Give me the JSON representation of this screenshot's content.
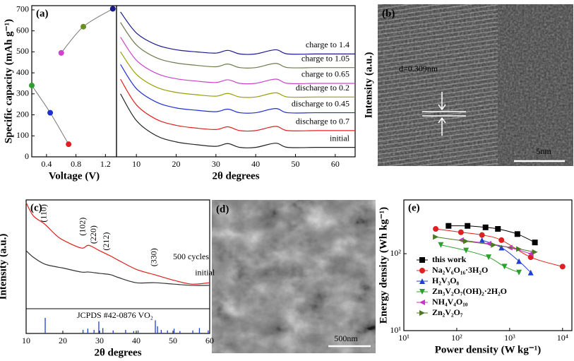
{
  "chart_data": [
    {
      "type": "scatter",
      "panel_label": "(a)",
      "y_label": "Specific capacity (mAh g⁻¹)",
      "x_label": "Voltage (V)",
      "xlim": [
        0.2,
        1.35
      ],
      "xticks": [
        0.4,
        0.8,
        1.2
      ],
      "ylim": [
        0,
        720
      ],
      "yticks": [
        0,
        100,
        200,
        300,
        400,
        500,
        600,
        700
      ],
      "series": [
        {
          "x": [
            0.2,
            0.45,
            0.7
          ],
          "values": [
            340,
            210,
            60
          ],
          "colors": [
            "#2ca02c",
            "#2030d0",
            "#e02020"
          ]
        },
        {
          "x": [
            0.6,
            0.9,
            1.3
          ],
          "values": [
            495,
            620,
            705
          ],
          "colors": [
            "#cc44cc",
            "#6b8e23",
            "#1a1a8c"
          ]
        }
      ]
    },
    {
      "type": "line",
      "x_label": "2θ degrees",
      "xlim": [
        5,
        65
      ],
      "xticks": [
        10,
        20,
        30,
        40,
        50,
        60
      ],
      "ylim": [
        0,
        720
      ],
      "series": [
        {
          "name": "charge to 1.4",
          "color": "#1a1a8c",
          "x": [
            6,
            10,
            15,
            20,
            25,
            30,
            33,
            36,
            40,
            45,
            48,
            55,
            60,
            65
          ],
          "values": [
            690,
            590,
            534,
            510,
            500,
            494,
            507,
            490,
            490,
            510,
            490,
            490,
            490,
            490
          ]
        },
        {
          "name": "charge to 1.05",
          "color": "#6b7d4a",
          "x": [
            6,
            10,
            15,
            20,
            25,
            30,
            33,
            36,
            40,
            45,
            48,
            55,
            60,
            65
          ],
          "values": [
            640,
            533,
            472,
            447,
            436,
            429,
            442,
            425,
            425,
            445,
            425,
            425,
            425,
            425
          ]
        },
        {
          "name": "charge to 0.65",
          "color": "#cc44cc",
          "x": [
            6,
            10,
            15,
            20,
            25,
            30,
            33,
            36,
            40,
            45,
            48,
            55,
            60,
            65
          ],
          "values": [
            570,
            460,
            398,
            372,
            361,
            354,
            367,
            350,
            350,
            370,
            350,
            350,
            350,
            350
          ]
        },
        {
          "name": "discharge to 0.2",
          "color": "#99a000",
          "x": [
            6,
            10,
            15,
            20,
            25,
            30,
            33,
            36,
            40,
            45,
            48,
            55,
            60,
            65
          ],
          "values": [
            500,
            393,
            332,
            307,
            296,
            289,
            302,
            285,
            285,
            305,
            285,
            285,
            285,
            285
          ]
        },
        {
          "name": "discharge to 0.45",
          "color": "#2030d0",
          "x": [
            6,
            10,
            15,
            20,
            25,
            30,
            33,
            36,
            40,
            45,
            48,
            55,
            60,
            65
          ],
          "values": [
            440,
            325,
            261,
            233,
            222,
            215,
            227,
            210,
            210,
            230,
            210,
            210,
            210,
            210
          ]
        },
        {
          "name": "discharge to 0.7",
          "color": "#e02020",
          "x": [
            6,
            10,
            15,
            20,
            25,
            30,
            33,
            36,
            40,
            45,
            48,
            55,
            60,
            65
          ],
          "values": [
            370,
            248,
            179,
            150,
            137,
            130,
            143,
            125,
            125,
            145,
            125,
            125,
            125,
            125
          ]
        },
        {
          "name": "initial",
          "color": "#222222",
          "x": [
            6,
            10,
            15,
            20,
            25,
            30,
            33,
            36,
            40,
            45,
            48,
            55,
            60,
            65
          ],
          "values": [
            300,
            173,
            101,
            71,
            58,
            50,
            63,
            45,
            45,
            65,
            45,
            45,
            45,
            45
          ]
        }
      ]
    },
    {
      "type": "image",
      "panel_label": "(b)",
      "y_label": "Intensity (a.u.)",
      "annotation": "d=0.309nm",
      "scale_bar": "5nm"
    },
    {
      "type": "line",
      "panel_label": "(c)",
      "y_label": "Intensity (a.u.)",
      "x_label": "2θ degrees",
      "xlim": [
        10,
        60
      ],
      "xticks": [
        10,
        20,
        30,
        40,
        50,
        60
      ],
      "ylim": [
        0,
        100
      ],
      "peak_labels": [
        "(110)",
        "(102)",
        "(220)",
        "(212)",
        "(330)"
      ],
      "series": [
        {
          "name": "500 cycles",
          "color": "#e02020",
          "x": [
            10,
            12,
            15,
            18,
            20,
            25,
            27,
            30,
            33,
            35,
            40,
            45,
            50,
            55,
            60
          ],
          "values": [
            98,
            88,
            82,
            74,
            70,
            64,
            66,
            62,
            58,
            55,
            48,
            44,
            40,
            37,
            38
          ]
        },
        {
          "name": "initial",
          "color": "#333333",
          "x": [
            10,
            12,
            15,
            18,
            20,
            25,
            27,
            30,
            33,
            35,
            40,
            45,
            50,
            55,
            60
          ],
          "values": [
            62,
            57,
            52,
            50,
            49,
            46,
            46,
            45,
            44,
            42,
            38,
            38,
            37,
            36,
            36
          ]
        }
      ],
      "reference": {
        "name": "JCPDS #42-0876 VO₂",
        "color": "#2040d0",
        "x": [
          15.2,
          25.5,
          26.8,
          28.5,
          29.8,
          30.9,
          33.7,
          37.1,
          39.3,
          40.5,
          45.2,
          45.8,
          46.8,
          48.5,
          50.3,
          51.9,
          55.4,
          57.2,
          59.6
        ],
        "values": [
          26,
          6,
          8,
          6,
          20,
          9,
          5,
          6,
          4,
          5,
          22,
          12,
          6,
          5,
          8,
          4,
          5,
          9,
          5
        ]
      }
    },
    {
      "type": "image",
      "panel_label": "(d)",
      "scale_bar": "500nm"
    },
    {
      "type": "scatter",
      "panel_label": "(e)",
      "y_label": "Energy density (Wh kg⁻¹)",
      "x_label": "Power density (W kg⁻¹)",
      "xlog": true,
      "ylog": true,
      "xlim": [
        10,
        15000
      ],
      "ylim": [
        10,
        500
      ],
      "xticks": [
        {
          "value": 10,
          "label": "10¹"
        },
        {
          "value": 100,
          "label": "10²"
        },
        {
          "value": 1000,
          "label": "10³"
        },
        {
          "value": 10000,
          "label": "10⁴"
        }
      ],
      "yticks": [
        {
          "value": 10,
          "label": "10¹"
        },
        {
          "value": 100,
          "label": "10²"
        }
      ],
      "series": [
        {
          "name": "this work",
          "color": "#000000",
          "marker": "square",
          "x": [
            70,
            160,
            350,
            600,
            1400,
            3000
          ],
          "values": [
            230,
            230,
            220,
            210,
            180,
            140
          ]
        },
        {
          "name": "Na₂V₆O₁₆·3H₂O",
          "color": "#e02020",
          "marker": "circle",
          "x": [
            40,
            120,
            300,
            700,
            2500,
            10000
          ],
          "values": [
            210,
            190,
            175,
            150,
            90,
            68
          ]
        },
        {
          "name": "H₂V₃O₈",
          "color": "#2040d0",
          "marker": "up",
          "x": [
            300,
            700,
            1500,
            2500
          ],
          "values": [
            150,
            120,
            80,
            57
          ]
        },
        {
          "name": "Zn₃V₂O₇(OH)₂·2H₂O",
          "color": "#2ca02c",
          "marker": "down",
          "x": [
            50,
            150,
            400,
            800,
            1500
          ],
          "values": [
            130,
            110,
            90,
            68,
            57
          ]
        },
        {
          "name": "NH₄V₄O₁₀",
          "color": "#cc33cc",
          "marker": "left",
          "x": [
            120,
            400,
            1000,
            2500
          ],
          "values": [
            150,
            135,
            120,
            100
          ]
        },
        {
          "name": "Zn₂V₂O₇",
          "color": "#4a7a20",
          "marker": "right",
          "x": [
            40,
            150,
            500,
            1500,
            3000
          ],
          "values": [
            165,
            145,
            130,
            115,
            105
          ]
        }
      ]
    }
  ]
}
